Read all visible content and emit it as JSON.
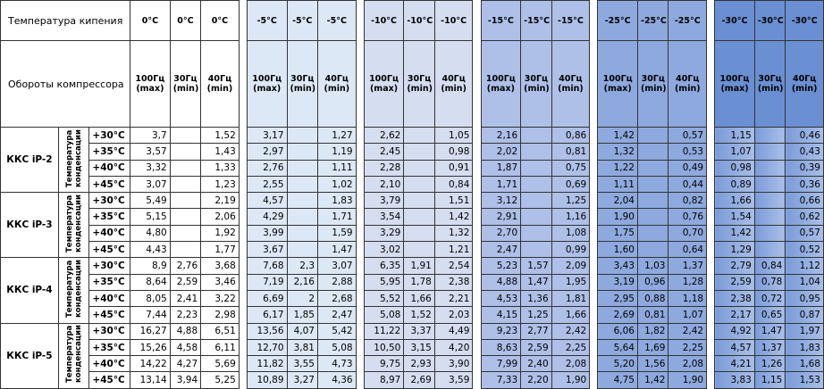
{
  "header": {
    "boiling_label": "Температура кипения",
    "speed_label": "Обороты компрессора",
    "columns": [
      {
        "temp": "0°C",
        "hz": "100Гц",
        "mode": "(max)"
      },
      {
        "temp": "0°C",
        "hz": "30Гц",
        "mode": "(min)"
      },
      {
        "temp": "0°C",
        "hz": "40Гц",
        "mode": "(min)"
      },
      {
        "temp": "-5°C",
        "hz": "100Гц",
        "mode": "(max)"
      },
      {
        "temp": "-5°C",
        "hz": "30Гц",
        "mode": "(min)"
      },
      {
        "temp": "-5°C",
        "hz": "40Гц",
        "mode": "(min)"
      },
      {
        "temp": "-10°C",
        "hz": "100Гц",
        "mode": "(max)"
      },
      {
        "temp": "-10°C",
        "hz": "30Гц",
        "mode": "(min)"
      },
      {
        "temp": "-10°C",
        "hz": "40Гц",
        "mode": "(min)"
      },
      {
        "temp": "-15°C",
        "hz": "100Гц",
        "mode": "(max)"
      },
      {
        "temp": "-15°C",
        "hz": "30Гц",
        "mode": "(min)"
      },
      {
        "temp": "-15°C",
        "hz": "40Гц",
        "mode": "(min)"
      },
      {
        "temp": "-25°C",
        "hz": "100Гц",
        "mode": "(max)"
      },
      {
        "temp": "-25°C",
        "hz": "30Гц",
        "mode": "(min)"
      },
      {
        "temp": "-25°C",
        "hz": "40Гц",
        "mode": "(min)"
      },
      {
        "temp": "-30°C",
        "hz": "100Гц",
        "mode": "(max)"
      },
      {
        "temp": "-30°C",
        "hz": "30Гц",
        "mode": "(min)"
      },
      {
        "temp": "-30°C",
        "hz": "40Гц",
        "mode": "(min)"
      }
    ]
  },
  "models": [
    {
      "name": "ККС iP-2",
      "cond_label": "Температура конденсации",
      "rows": [
        {
          "temp": "+30°C",
          "values": [
            "3,7",
            null,
            "1,52",
            "3,17",
            null,
            "1,27",
            "2,62",
            null,
            "1,05",
            "2,16",
            null,
            "0,86",
            "1,42",
            null,
            "0,57",
            "1,15",
            null,
            "0,46"
          ]
        },
        {
          "temp": "+35°C",
          "values": [
            "3,57",
            null,
            "1,43",
            "2,97",
            null,
            "1,19",
            "2,45",
            null,
            "0,98",
            "2,02",
            null,
            "0,81",
            "1,32",
            null,
            "0,53",
            "1,07",
            null,
            "0,43"
          ]
        },
        {
          "temp": "+40°C",
          "values": [
            "3,32",
            null,
            "1,33",
            "2,76",
            null,
            "1,11",
            "2,28",
            null,
            "0,91",
            "1,87",
            null,
            "0,75",
            "1,22",
            null,
            "0,49",
            "0,98",
            null,
            "0,39"
          ]
        },
        {
          "temp": "+45°C",
          "values": [
            "3,07",
            null,
            "1,23",
            "2,55",
            null,
            "1,02",
            "2,10",
            null,
            "0,84",
            "1,71",
            null,
            "0,69",
            "1,11",
            null,
            "0,44",
            "0,89",
            null,
            "0,36"
          ]
        }
      ]
    },
    {
      "name": "ККС iP-3",
      "cond_label": "Температура конденсации",
      "rows": [
        {
          "temp": "+30°C",
          "values": [
            "5,49",
            null,
            "2,19",
            "4,57",
            null,
            "1,83",
            "3,79",
            null,
            "1,51",
            "3,12",
            null,
            "1,25",
            "2,04",
            null,
            "0,82",
            "1,66",
            null,
            "0,66"
          ]
        },
        {
          "temp": "+35°C",
          "values": [
            "5,15",
            null,
            "2,06",
            "4,29",
            null,
            "1,71",
            "3,54",
            null,
            "1,42",
            "2,91",
            null,
            "1,16",
            "1,90",
            null,
            "0,76",
            "1,54",
            null,
            "0,62"
          ]
        },
        {
          "temp": "+40°C",
          "values": [
            "4,80",
            null,
            "1,92",
            "3,99",
            null,
            "1,59",
            "3,29",
            null,
            "1,32",
            "2,70",
            null,
            "1,08",
            "1,75",
            null,
            "0,70",
            "1,42",
            null,
            "0,57"
          ]
        },
        {
          "temp": "+45°C",
          "values": [
            "4,43",
            null,
            "1,77",
            "3,67",
            null,
            "1,47",
            "3,02",
            null,
            "1,21",
            "2,47",
            null,
            "0,99",
            "1,60",
            null,
            "0,64",
            "1,29",
            null,
            "0,52"
          ]
        }
      ]
    },
    {
      "name": "ККС iP-4",
      "cond_label": "Температура конденсации",
      "rows": [
        {
          "temp": "+30°C",
          "values": [
            "8,9",
            "2,76",
            "3,68",
            "7,68",
            "2,3",
            "3,07",
            "6,35",
            "1,91",
            "2,54",
            "5,23",
            "1,57",
            "2,09",
            "3,43",
            "1,03",
            "1,37",
            "2,79",
            "0,84",
            "1,12"
          ]
        },
        {
          "temp": "+35°C",
          "values": [
            "8,64",
            "2,59",
            "3,46",
            "7,19",
            "2,16",
            "2,88",
            "5,95",
            "1,78",
            "2,38",
            "4,88",
            "1,47",
            "1,95",
            "3,19",
            "0,96",
            "1,28",
            "2,59",
            "0,78",
            "1,04"
          ]
        },
        {
          "temp": "+40°C",
          "values": [
            "8,05",
            "2,41",
            "3,22",
            "6,69",
            "2",
            "2,68",
            "5,52",
            "1,66",
            "2,21",
            "4,53",
            "1,36",
            "1,81",
            "2,95",
            "0,88",
            "1,18",
            "2,38",
            "0,72",
            "0,95"
          ]
        },
        {
          "temp": "+45°C",
          "values": [
            "7,44",
            "2,23",
            "2,98",
            "6,17",
            "1,85",
            "2,47",
            "5,08",
            "1,52",
            "2,03",
            "4,15",
            "1,25",
            "1,66",
            "2,69",
            "0,81",
            "1,07",
            "2,17",
            "0,65",
            "0,87"
          ]
        }
      ]
    },
    {
      "name": "ККС iP-5",
      "cond_label": "Температура конденсации",
      "rows": [
        {
          "temp": "+30°C",
          "values": [
            "16,27",
            "4,88",
            "6,51",
            "13,56",
            "4,07",
            "5,42",
            "11,22",
            "3,37",
            "4,49",
            "9,23",
            "2,77",
            "2,42",
            "6,06",
            "1,82",
            "2,42",
            "4,92",
            "1,47",
            "1,97"
          ]
        },
        {
          "temp": "+35°C",
          "values": [
            "15,26",
            "4,58",
            "6,11",
            "12,70",
            "3,81",
            "5,08",
            "10,50",
            "3,15",
            "4,20",
            "8,63",
            "2,59",
            "2,25",
            "5,64",
            "1,69",
            "2,25",
            "4,57",
            "1,37",
            "1,83"
          ]
        },
        {
          "temp": "+40°C",
          "values": [
            "14,22",
            "4,27",
            "5,69",
            "11,82",
            "3,55",
            "4,73",
            "9,75",
            "2,93",
            "3,90",
            "7,99",
            "2,40",
            "2,08",
            "5,20",
            "1,56",
            "2,08",
            "4,21",
            "1,26",
            "1,68"
          ]
        },
        {
          "temp": "+45°C",
          "values": [
            "13,14",
            "3,94",
            "5,25",
            "10,89",
            "3,27",
            "4,36",
            "8,97",
            "2,69",
            "3,59",
            "7,33",
            "2,20",
            "1,90",
            "4,75",
            "1,42",
            "1,90",
            "3,83",
            "1,15",
            "1,53"
          ]
        }
      ]
    }
  ]
}
